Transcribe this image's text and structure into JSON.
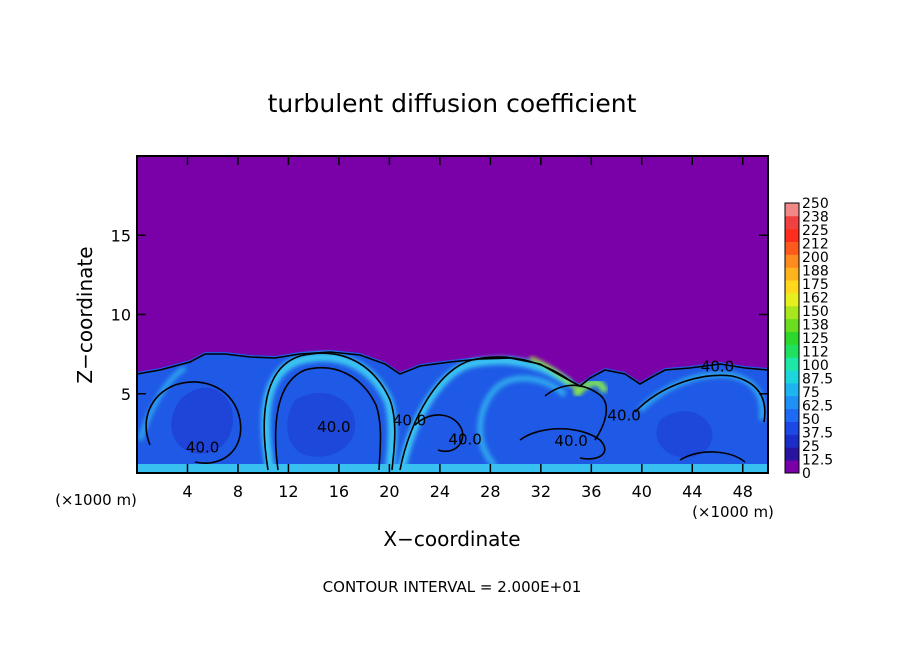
{
  "chart_data": {
    "type": "heatmap",
    "title": "turbulent diffusion coefficient",
    "xlabel": "X−coordinate",
    "ylabel": "Z−coordinate",
    "x_unit": "(×1000 m)",
    "z_unit": "(×1000 m)",
    "footer": "CONTOUR INTERVAL = 2.000E+01",
    "xlim": [
      0,
      50
    ],
    "ylim": [
      0,
      20
    ],
    "x_ticks": [
      4,
      8,
      12,
      16,
      20,
      24,
      28,
      32,
      36,
      40,
      44,
      48
    ],
    "y_ticks": [
      5,
      10,
      15
    ],
    "colorbar": {
      "labels": [
        "0",
        "12.5",
        "25",
        "37.5",
        "50",
        "62.5",
        "75",
        "87.5",
        "100",
        "112",
        "125",
        "138",
        "150",
        "162",
        "175",
        "188",
        "200",
        "212",
        "225",
        "238",
        "250"
      ],
      "colors": [
        "#7a00a8",
        "#2814a0",
        "#1a2dc8",
        "#1d48e6",
        "#1f6af5",
        "#1f90f5",
        "#1eb4ef",
        "#1cd6dc",
        "#1ee8a8",
        "#20e060",
        "#2cd82c",
        "#6add1e",
        "#a8e61e",
        "#e6f01e",
        "#ffd81e",
        "#ffb41e",
        "#ff8a1e",
        "#ff5a1e",
        "#ff2d1e",
        "#f04040",
        "#f08888"
      ]
    },
    "contour_labels": [
      {
        "text": "40.0",
        "x": 5.2,
        "z": 1.3
      },
      {
        "text": "40.0",
        "x": 15.6,
        "z": 2.6
      },
      {
        "text": "40.0",
        "x": 21.6,
        "z": 3.0
      },
      {
        "text": "40.0",
        "x": 26.0,
        "z": 1.8
      },
      {
        "text": "40.0",
        "x": 34.4,
        "z": 1.7
      },
      {
        "text": "40.0",
        "x": 38.6,
        "z": 3.3
      },
      {
        "text": "40.0",
        "x": 46.0,
        "z": 6.4
      }
    ]
  },
  "colors": {
    "background": "#7a00a8",
    "plume": "#1f5ae6",
    "streak": "#38c0f0",
    "contour": "#000000"
  }
}
